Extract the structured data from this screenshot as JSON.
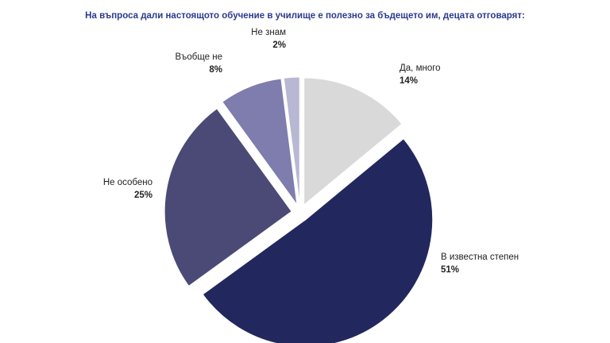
{
  "chart_data": {
    "type": "pie",
    "title": "На въпроса дали настоящото  обучение в училище  е полезно за бъдещето им, децата отговарят:",
    "slices": [
      {
        "label": "Да, много",
        "value": 14,
        "value_label": "14%",
        "color": "#d9d9d9"
      },
      {
        "label": "В известна степен",
        "value": 51,
        "value_label": "51%",
        "color": "#22285e"
      },
      {
        "label": "Не особено",
        "value": 25,
        "value_label": "25%",
        "color": "#4b4a76"
      },
      {
        "label": "Въобще не",
        "value": 8,
        "value_label": "8%",
        "color": "#7f7cae"
      },
      {
        "label": "Не знам",
        "value": 2,
        "value_label": "2%",
        "color": "#b8b8d4"
      }
    ],
    "legend": "none",
    "exploded": true
  }
}
